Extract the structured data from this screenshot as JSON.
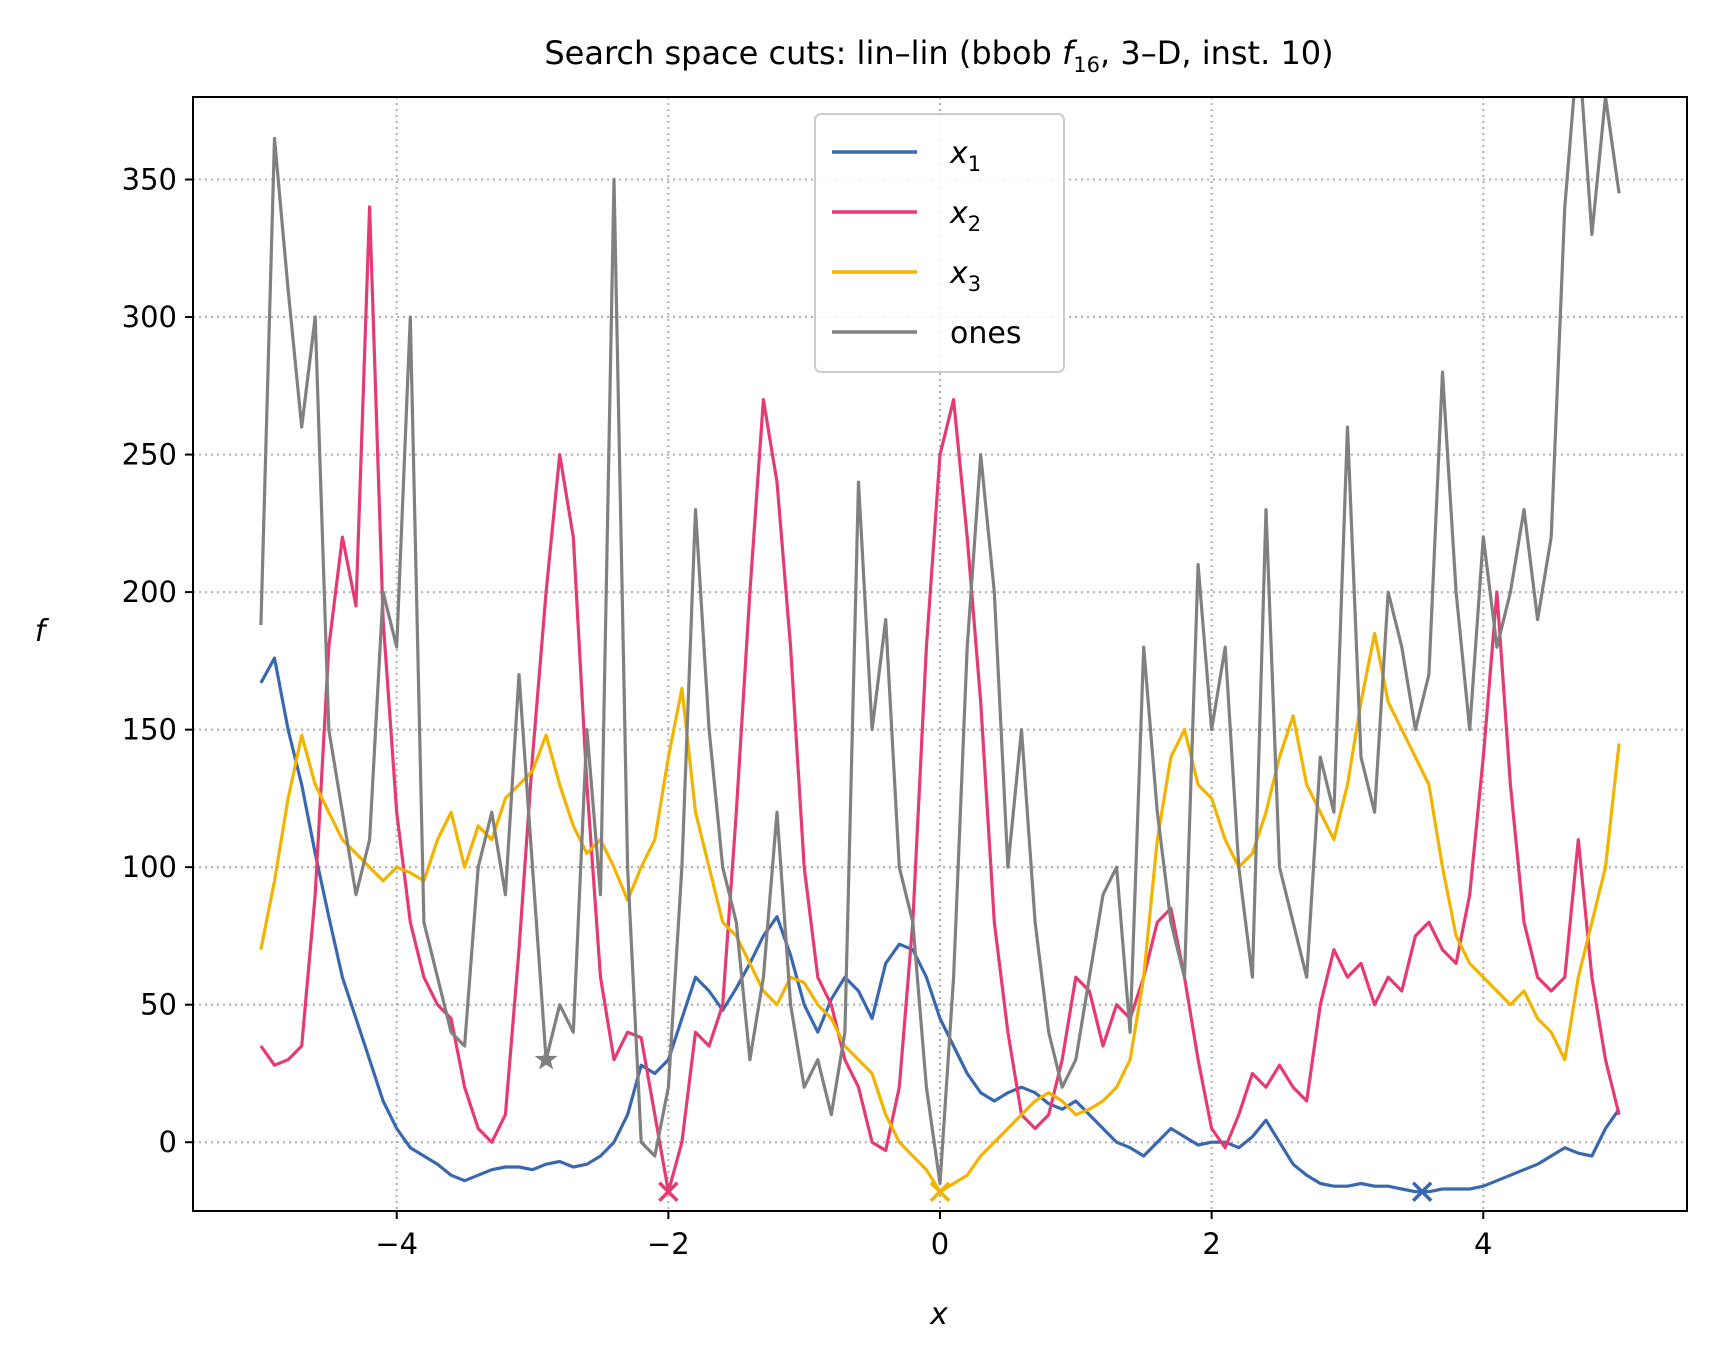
{
  "chart_data": {
    "type": "line",
    "title_prefix": "Search space cuts: lin–lin (bbob ",
    "title_func": "f",
    "title_func_sub": "16",
    "title_suffix": ", 3–D, inst. 10)",
    "xlabel": "x",
    "ylabel": "f",
    "xlim": [
      -5.5,
      5.5
    ],
    "ylim": [
      -25,
      380
    ],
    "xticks": [
      -4,
      -2,
      0,
      2,
      4
    ],
    "xtick_labels": [
      "−4",
      "−2",
      "0",
      "2",
      "4"
    ],
    "yticks": [
      0,
      50,
      100,
      150,
      200,
      250,
      300,
      350
    ],
    "ytick_labels": [
      "0",
      "50",
      "100",
      "150",
      "200",
      "250",
      "300",
      "350"
    ],
    "grid": true,
    "legend_position": "top-center",
    "series": [
      {
        "name": "x",
        "name_sub": "1",
        "color": "#3a68ae",
        "x": [
          -5.0,
          -4.9,
          -4.8,
          -4.7,
          -4.6,
          -4.5,
          -4.4,
          -4.3,
          -4.2,
          -4.1,
          -4.0,
          -3.9,
          -3.8,
          -3.7,
          -3.6,
          -3.5,
          -3.4,
          -3.3,
          -3.2,
          -3.1,
          -3.0,
          -2.9,
          -2.8,
          -2.7,
          -2.6,
          -2.5,
          -2.4,
          -2.3,
          -2.2,
          -2.1,
          -2.0,
          -1.9,
          -1.8,
          -1.7,
          -1.6,
          -1.5,
          -1.4,
          -1.3,
          -1.2,
          -1.1,
          -1.0,
          -0.9,
          -0.8,
          -0.7,
          -0.6,
          -0.5,
          -0.4,
          -0.3,
          -0.2,
          -0.1,
          0.0,
          0.1,
          0.2,
          0.3,
          0.4,
          0.5,
          0.6,
          0.7,
          0.8,
          0.9,
          1.0,
          1.1,
          1.2,
          1.3,
          1.4,
          1.5,
          1.6,
          1.7,
          1.8,
          1.9,
          2.0,
          2.1,
          2.2,
          2.3,
          2.4,
          2.5,
          2.6,
          2.7,
          2.8,
          2.9,
          3.0,
          3.1,
          3.2,
          3.3,
          3.4,
          3.5,
          3.6,
          3.7,
          3.8,
          3.9,
          4.0,
          4.1,
          4.2,
          4.3,
          4.4,
          4.5,
          4.6,
          4.7,
          4.8,
          4.9,
          5.0
        ],
        "y": [
          167,
          176,
          150,
          130,
          105,
          82,
          60,
          45,
          30,
          15,
          5,
          -2,
          -5,
          -8,
          -12,
          -14,
          -12,
          -10,
          -9,
          -9,
          -10,
          -8,
          -7,
          -9,
          -8,
          -5,
          0,
          10,
          28,
          25,
          30,
          45,
          60,
          55,
          48,
          56,
          65,
          75,
          82,
          68,
          50,
          40,
          52,
          60,
          55,
          45,
          65,
          72,
          70,
          60,
          45,
          35,
          25,
          18,
          15,
          18,
          20,
          18,
          14,
          12,
          15,
          10,
          5,
          0,
          -2,
          -5,
          0,
          5,
          2,
          -1,
          0,
          0,
          -2,
          2,
          8,
          0,
          -8,
          -12,
          -15,
          -16,
          -16,
          -15,
          -16,
          -16,
          -17,
          -18,
          -18,
          -17,
          -17,
          -17,
          -16,
          -14,
          -12,
          -10,
          -8,
          -5,
          -2,
          -4,
          -5,
          5,
          12
        ]
      },
      {
        "name": "x",
        "name_sub": "2",
        "color": "#e63b72",
        "x": [
          -5.0,
          -4.9,
          -4.8,
          -4.7,
          -4.6,
          -4.5,
          -4.4,
          -4.3,
          -4.2,
          -4.1,
          -4.0,
          -3.9,
          -3.8,
          -3.7,
          -3.6,
          -3.5,
          -3.4,
          -3.3,
          -3.2,
          -3.1,
          -3.0,
          -2.9,
          -2.8,
          -2.7,
          -2.6,
          -2.5,
          -2.4,
          -2.3,
          -2.2,
          -2.1,
          -2.0,
          -1.9,
          -1.8,
          -1.7,
          -1.6,
          -1.5,
          -1.4,
          -1.3,
          -1.2,
          -1.1,
          -1.0,
          -0.9,
          -0.8,
          -0.7,
          -0.6,
          -0.5,
          -0.4,
          -0.3,
          -0.2,
          -0.1,
          0.0,
          0.1,
          0.2,
          0.3,
          0.4,
          0.5,
          0.6,
          0.7,
          0.8,
          0.9,
          1.0,
          1.1,
          1.2,
          1.3,
          1.4,
          1.5,
          1.6,
          1.7,
          1.8,
          1.9,
          2.0,
          2.1,
          2.2,
          2.3,
          2.4,
          2.5,
          2.6,
          2.7,
          2.8,
          2.9,
          3.0,
          3.1,
          3.2,
          3.3,
          3.4,
          3.5,
          3.6,
          3.7,
          3.8,
          3.9,
          4.0,
          4.1,
          4.2,
          4.3,
          4.4,
          4.5,
          4.6,
          4.7,
          4.8,
          4.9,
          5.0
        ],
        "y": [
          35,
          28,
          30,
          35,
          90,
          180,
          220,
          195,
          340,
          190,
          120,
          80,
          60,
          50,
          45,
          20,
          5,
          0,
          10,
          70,
          140,
          200,
          250,
          220,
          130,
          60,
          30,
          40,
          38,
          10,
          -18,
          0,
          40,
          35,
          50,
          120,
          200,
          270,
          240,
          180,
          100,
          60,
          50,
          30,
          20,
          0,
          -3,
          20,
          80,
          180,
          250,
          270,
          220,
          160,
          80,
          40,
          10,
          5,
          10,
          30,
          60,
          55,
          35,
          50,
          45,
          60,
          80,
          85,
          60,
          30,
          5,
          -2,
          10,
          25,
          20,
          28,
          20,
          15,
          50,
          70,
          60,
          65,
          50,
          60,
          55,
          75,
          80,
          70,
          65,
          90,
          140,
          200,
          130,
          80,
          60,
          55,
          60,
          110,
          60,
          30,
          10
        ]
      },
      {
        "name": "x",
        "name_sub": "3",
        "color": "#f1b400",
        "x": [
          -5.0,
          -4.9,
          -4.8,
          -4.7,
          -4.6,
          -4.5,
          -4.4,
          -4.3,
          -4.2,
          -4.1,
          -4.0,
          -3.9,
          -3.8,
          -3.7,
          -3.6,
          -3.5,
          -3.4,
          -3.3,
          -3.2,
          -3.1,
          -3.0,
          -2.9,
          -2.8,
          -2.7,
          -2.6,
          -2.5,
          -2.4,
          -2.3,
          -2.2,
          -2.1,
          -2.0,
          -1.9,
          -1.8,
          -1.7,
          -1.6,
          -1.5,
          -1.4,
          -1.3,
          -1.2,
          -1.1,
          -1.0,
          -0.9,
          -0.8,
          -0.7,
          -0.6,
          -0.5,
          -0.4,
          -0.3,
          -0.2,
          -0.1,
          0.0,
          0.1,
          0.2,
          0.3,
          0.4,
          0.5,
          0.6,
          0.7,
          0.8,
          0.9,
          1.0,
          1.1,
          1.2,
          1.3,
          1.4,
          1.5,
          1.6,
          1.7,
          1.8,
          1.9,
          2.0,
          2.1,
          2.2,
          2.3,
          2.4,
          2.5,
          2.6,
          2.7,
          2.8,
          2.9,
          3.0,
          3.1,
          3.2,
          3.3,
          3.4,
          3.5,
          3.6,
          3.7,
          3.8,
          3.9,
          4.0,
          4.1,
          4.2,
          4.3,
          4.4,
          4.5,
          4.6,
          4.7,
          4.8,
          4.9,
          5.0
        ],
        "y": [
          70,
          95,
          125,
          148,
          130,
          120,
          110,
          105,
          100,
          95,
          100,
          98,
          95,
          110,
          120,
          100,
          115,
          110,
          125,
          130,
          135,
          148,
          130,
          115,
          105,
          110,
          100,
          88,
          100,
          110,
          140,
          165,
          120,
          100,
          80,
          75,
          65,
          55,
          50,
          60,
          58,
          50,
          45,
          35,
          30,
          25,
          10,
          0,
          -5,
          -10,
          -18,
          -15,
          -12,
          -5,
          0,
          5,
          10,
          15,
          18,
          15,
          10,
          12,
          15,
          20,
          30,
          60,
          110,
          140,
          150,
          130,
          125,
          110,
          100,
          105,
          120,
          140,
          155,
          130,
          120,
          110,
          130,
          160,
          185,
          160,
          150,
          140,
          130,
          100,
          75,
          65,
          60,
          55,
          50,
          55,
          45,
          40,
          30,
          60,
          80,
          100,
          145
        ]
      },
      {
        "name": "ones",
        "name_sub": "",
        "color": "#808080",
        "x": [
          -5.0,
          -4.9,
          -4.8,
          -4.7,
          -4.6,
          -4.5,
          -4.4,
          -4.3,
          -4.2,
          -4.1,
          -4.0,
          -3.9,
          -3.8,
          -3.7,
          -3.6,
          -3.5,
          -3.4,
          -3.3,
          -3.2,
          -3.1,
          -3.0,
          -2.9,
          -2.8,
          -2.7,
          -2.6,
          -2.5,
          -2.4,
          -2.3,
          -2.2,
          -2.1,
          -2.0,
          -1.9,
          -1.8,
          -1.7,
          -1.6,
          -1.5,
          -1.4,
          -1.3,
          -1.2,
          -1.1,
          -1.0,
          -0.9,
          -0.8,
          -0.7,
          -0.6,
          -0.5,
          -0.4,
          -0.3,
          -0.2,
          -0.1,
          0.0,
          0.1,
          0.2,
          0.3,
          0.4,
          0.5,
          0.6,
          0.7,
          0.8,
          0.9,
          1.0,
          1.1,
          1.2,
          1.3,
          1.4,
          1.5,
          1.6,
          1.7,
          1.8,
          1.9,
          2.0,
          2.1,
          2.2,
          2.3,
          2.4,
          2.5,
          2.6,
          2.7,
          2.8,
          2.9,
          3.0,
          3.1,
          3.2,
          3.3,
          3.4,
          3.5,
          3.6,
          3.7,
          3.8,
          3.9,
          4.0,
          4.1,
          4.2,
          4.3,
          4.4,
          4.5,
          4.6,
          4.7,
          4.8,
          4.9,
          5.0
        ],
        "y": [
          188,
          365,
          310,
          260,
          300,
          150,
          120,
          90,
          110,
          200,
          180,
          300,
          80,
          60,
          40,
          35,
          100,
          120,
          90,
          170,
          100,
          30,
          50,
          40,
          150,
          90,
          350,
          100,
          0,
          -5,
          20,
          100,
          230,
          150,
          100,
          80,
          30,
          60,
          120,
          50,
          20,
          30,
          10,
          40,
          240,
          150,
          190,
          100,
          80,
          20,
          -15,
          60,
          180,
          250,
          200,
          100,
          150,
          80,
          40,
          20,
          30,
          60,
          90,
          100,
          40,
          180,
          120,
          80,
          60,
          210,
          150,
          180,
          100,
          60,
          230,
          100,
          80,
          60,
          140,
          120,
          260,
          140,
          120,
          200,
          180,
          150,
          170,
          280,
          200,
          150,
          220,
          180,
          200,
          230,
          190,
          220,
          340,
          400,
          330,
          380,
          345
        ]
      }
    ],
    "markers": [
      {
        "series": "x1",
        "x": 3.55,
        "y": -18,
        "symbol": "x"
      },
      {
        "series": "x2",
        "x": -2.0,
        "y": -18,
        "symbol": "x"
      },
      {
        "series": "x3",
        "x": 0.0,
        "y": -18,
        "symbol": "x"
      },
      {
        "series": "ones",
        "x": -2.9,
        "y": 30,
        "symbol": "star"
      }
    ]
  }
}
